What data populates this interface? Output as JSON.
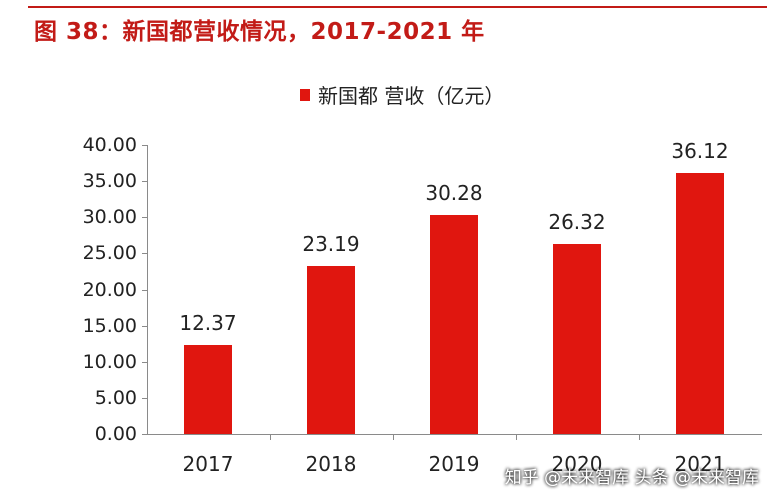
{
  "header": {
    "title": "图 38：新国都营收情况，2017-2021 年"
  },
  "colors": {
    "accent": "#c21b17",
    "bar": "#e0160f"
  },
  "watermark": {
    "text": "知乎 @未来智库 头条 @未来智库"
  },
  "chart_data": {
    "type": "bar",
    "title": "",
    "xlabel": "",
    "ylabel": "",
    "categories": [
      "2017",
      "2018",
      "2019",
      "2020",
      "2021"
    ],
    "series": [
      {
        "name": "新国都 营收（亿元）",
        "values": [
          12.37,
          23.19,
          30.28,
          26.32,
          36.12
        ],
        "value_labels": [
          "12.37",
          "23.19",
          "30.28",
          "26.32",
          "36.12"
        ]
      }
    ],
    "ylim": [
      0,
      40
    ],
    "yticks": [
      "0.00",
      "5.00",
      "10.00",
      "15.00",
      "20.00",
      "25.00",
      "30.00",
      "35.00",
      "40.00"
    ],
    "legend_position": "top-center",
    "grid": false
  }
}
